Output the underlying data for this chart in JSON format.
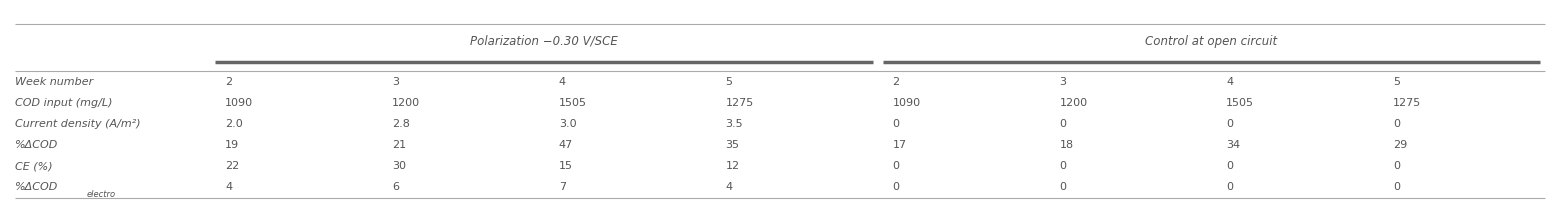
{
  "header_group1": "Polarization −0.30 V/SCE",
  "header_group2": "Control at open circuit",
  "row_labels": [
    "Week number",
    "COD input (mg/L)",
    "Current density (A/m²)",
    "%ΔCOD",
    "CE (%)",
    "%ΔCOD"
  ],
  "row_label_sub": [
    "",
    "",
    "",
    "",
    "",
    "electro"
  ],
  "data": [
    [
      "2",
      "3",
      "4",
      "5",
      "2",
      "3",
      "4",
      "5"
    ],
    [
      "1090",
      "1200",
      "1505",
      "1275",
      "1090",
      "1200",
      "1505",
      "1275"
    ],
    [
      "2.0",
      "2.8",
      "3.0",
      "3.5",
      "0",
      "0",
      "0",
      "0"
    ],
    [
      "19",
      "21",
      "47",
      "35",
      "17",
      "18",
      "34",
      "29"
    ],
    [
      "22",
      "30",
      "15",
      "12",
      "0",
      "0",
      "0",
      "0"
    ],
    [
      "4",
      "6",
      "7",
      "4",
      "0",
      "0",
      "0",
      "0"
    ]
  ],
  "bg_color": "#ffffff",
  "thin_line_color": "#aaaaaa",
  "thick_line_color": "#666666",
  "text_color": "#555555",
  "font_size": 8.0,
  "header_font_size": 8.5
}
